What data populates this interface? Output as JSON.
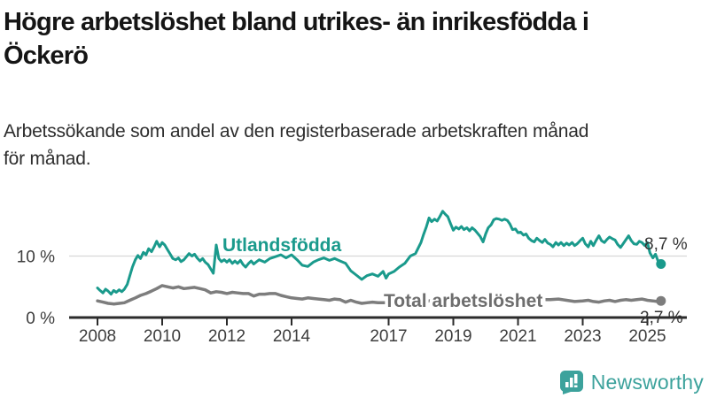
{
  "header": {
    "title": "Högre arbetslöshet bland utrikes- än inrikesfödda i\nÖckerö",
    "subtitle": "Arbetssökande som andel av den registerbaserade arbetskraften månad\nför månad."
  },
  "branding": {
    "logo_text": "Newsworthy",
    "logo_icon": "bar-chart-speech-bubble-icon",
    "logo_color": "#3ca29c"
  },
  "chart_data": {
    "type": "line",
    "title": "Högre arbetslöshet bland utrikes- än inrikesfödda i Öckerö",
    "subtitle": "Arbetssökande som andel av den registerbaserade arbetskraften månad för månad.",
    "x_axis": {
      "unit": "year",
      "range": [
        2008,
        2025.6
      ],
      "ticks": [
        2008,
        2010,
        2012,
        2014,
        2017,
        2019,
        2021,
        2023,
        2025
      ]
    },
    "y_axis": {
      "unit": "percent",
      "range": [
        0,
        18.5
      ],
      "ticks": [
        {
          "value": 10,
          "label": "10 %"
        },
        {
          "value": 0,
          "label": "0 %"
        }
      ],
      "gridline_at": 10
    },
    "colors": {
      "utlandsfodda": "#1a9a8c",
      "total": "#7d7d7d",
      "axis": "#2b2b2b",
      "gridline": "#d8d8d8",
      "end_label_text": "#333333"
    },
    "series": [
      {
        "name": "Total arbetslöshet",
        "color": "#7d7d7d",
        "label_color": "#6e6e6e",
        "end_label": "2,7 %",
        "end_value": 2.7,
        "points": [
          [
            2008.0,
            2.7
          ],
          [
            2008.17,
            2.5
          ],
          [
            2008.33,
            2.3
          ],
          [
            2008.5,
            2.2
          ],
          [
            2008.67,
            2.3
          ],
          [
            2008.83,
            2.4
          ],
          [
            2009.0,
            2.8
          ],
          [
            2009.17,
            3.2
          ],
          [
            2009.33,
            3.6
          ],
          [
            2009.5,
            3.9
          ],
          [
            2009.67,
            4.3
          ],
          [
            2009.83,
            4.7
          ],
          [
            2010.0,
            5.2
          ],
          [
            2010.17,
            5.0
          ],
          [
            2010.33,
            4.8
          ],
          [
            2010.5,
            5.0
          ],
          [
            2010.67,
            4.7
          ],
          [
            2010.83,
            4.8
          ],
          [
            2011.0,
            4.9
          ],
          [
            2011.17,
            4.7
          ],
          [
            2011.33,
            4.5
          ],
          [
            2011.5,
            4.0
          ],
          [
            2011.67,
            4.2
          ],
          [
            2011.83,
            4.1
          ],
          [
            2012.0,
            3.9
          ],
          [
            2012.17,
            4.1
          ],
          [
            2012.33,
            4.0
          ],
          [
            2012.5,
            3.9
          ],
          [
            2012.67,
            3.9
          ],
          [
            2012.83,
            3.5
          ],
          [
            2013.0,
            3.8
          ],
          [
            2013.17,
            3.8
          ],
          [
            2013.33,
            3.9
          ],
          [
            2013.5,
            3.9
          ],
          [
            2013.67,
            3.6
          ],
          [
            2013.83,
            3.4
          ],
          [
            2014.0,
            3.2
          ],
          [
            2014.17,
            3.1
          ],
          [
            2014.33,
            3.0
          ],
          [
            2014.5,
            3.2
          ],
          [
            2014.67,
            3.1
          ],
          [
            2014.83,
            3.0
          ],
          [
            2015.0,
            2.9
          ],
          [
            2015.17,
            2.8
          ],
          [
            2015.33,
            3.0
          ],
          [
            2015.5,
            2.9
          ],
          [
            2015.67,
            2.5
          ],
          [
            2015.83,
            2.8
          ],
          [
            2016.0,
            2.5
          ],
          [
            2016.17,
            2.3
          ],
          [
            2016.33,
            2.4
          ],
          [
            2016.5,
            2.5
          ],
          [
            2016.67,
            2.4
          ],
          [
            2016.83,
            2.4
          ],
          [
            2017.0,
            2.4
          ],
          [
            2017.25,
            2.3
          ],
          [
            2017.5,
            2.4
          ],
          [
            2017.75,
            2.5
          ],
          [
            2018.0,
            2.6
          ],
          [
            2018.25,
            2.7
          ],
          [
            2018.5,
            2.9
          ],
          [
            2018.75,
            2.9
          ],
          [
            2019.0,
            2.8
          ],
          [
            2019.25,
            2.8
          ],
          [
            2019.5,
            2.7
          ],
          [
            2019.75,
            2.8
          ],
          [
            2020.0,
            2.9
          ],
          [
            2020.25,
            3.4
          ],
          [
            2020.5,
            3.5
          ],
          [
            2020.75,
            3.4
          ],
          [
            2021.0,
            3.2
          ],
          [
            2021.25,
            3.1
          ],
          [
            2021.5,
            3.0
          ],
          [
            2021.75,
            2.9
          ],
          [
            2022.0,
            2.9
          ],
          [
            2022.25,
            3.0
          ],
          [
            2022.5,
            2.8
          ],
          [
            2022.75,
            2.6
          ],
          [
            2023.0,
            2.7
          ],
          [
            2023.17,
            2.8
          ],
          [
            2023.33,
            2.6
          ],
          [
            2023.5,
            2.5
          ],
          [
            2023.67,
            2.7
          ],
          [
            2023.83,
            2.8
          ],
          [
            2024.0,
            2.6
          ],
          [
            2024.17,
            2.8
          ],
          [
            2024.33,
            2.9
          ],
          [
            2024.5,
            2.8
          ],
          [
            2024.67,
            2.9
          ],
          [
            2024.83,
            3.0
          ],
          [
            2025.0,
            2.8
          ],
          [
            2025.17,
            2.7
          ],
          [
            2025.3,
            2.6
          ],
          [
            2025.42,
            2.7
          ]
        ]
      },
      {
        "name": "Utlandsfödda",
        "color": "#1a9a8c",
        "label_color": "#1a9a8c",
        "end_label": "8,7 %",
        "end_value": 8.7,
        "points": [
          [
            2008.0,
            4.8
          ],
          [
            2008.08,
            4.4
          ],
          [
            2008.17,
            4.0
          ],
          [
            2008.25,
            4.6
          ],
          [
            2008.33,
            4.3
          ],
          [
            2008.42,
            3.8
          ],
          [
            2008.5,
            4.4
          ],
          [
            2008.58,
            4.1
          ],
          [
            2008.67,
            4.5
          ],
          [
            2008.75,
            4.2
          ],
          [
            2008.83,
            4.6
          ],
          [
            2008.92,
            5.4
          ],
          [
            2009.0,
            6.8
          ],
          [
            2009.08,
            8.2
          ],
          [
            2009.17,
            9.4
          ],
          [
            2009.25,
            10.1
          ],
          [
            2009.33,
            9.6
          ],
          [
            2009.42,
            10.6
          ],
          [
            2009.5,
            10.2
          ],
          [
            2009.58,
            11.2
          ],
          [
            2009.67,
            10.7
          ],
          [
            2009.75,
            11.5
          ],
          [
            2009.83,
            12.4
          ],
          [
            2009.92,
            11.5
          ],
          [
            2010.0,
            12.2
          ],
          [
            2010.08,
            11.8
          ],
          [
            2010.17,
            11.0
          ],
          [
            2010.25,
            10.3
          ],
          [
            2010.33,
            9.6
          ],
          [
            2010.42,
            9.4
          ],
          [
            2010.5,
            9.7
          ],
          [
            2010.58,
            9.1
          ],
          [
            2010.67,
            9.4
          ],
          [
            2010.75,
            9.9
          ],
          [
            2010.83,
            10.4
          ],
          [
            2010.92,
            10.0
          ],
          [
            2011.0,
            10.3
          ],
          [
            2011.08,
            9.7
          ],
          [
            2011.17,
            9.2
          ],
          [
            2011.25,
            9.6
          ],
          [
            2011.33,
            9.0
          ],
          [
            2011.42,
            8.6
          ],
          [
            2011.5,
            7.9
          ],
          [
            2011.58,
            7.2
          ],
          [
            2011.67,
            11.8
          ],
          [
            2011.75,
            9.6
          ],
          [
            2011.83,
            9.1
          ],
          [
            2011.92,
            9.4
          ],
          [
            2012.0,
            9.0
          ],
          [
            2012.08,
            9.4
          ],
          [
            2012.17,
            8.8
          ],
          [
            2012.25,
            9.2
          ],
          [
            2012.33,
            8.8
          ],
          [
            2012.42,
            9.3
          ],
          [
            2012.5,
            8.6
          ],
          [
            2012.58,
            8.2
          ],
          [
            2012.67,
            8.8
          ],
          [
            2012.75,
            9.2
          ],
          [
            2012.83,
            8.7
          ],
          [
            2012.92,
            9.1
          ],
          [
            2013.0,
            9.4
          ],
          [
            2013.17,
            9.0
          ],
          [
            2013.33,
            9.6
          ],
          [
            2013.5,
            9.9
          ],
          [
            2013.67,
            10.2
          ],
          [
            2013.83,
            9.7
          ],
          [
            2014.0,
            10.2
          ],
          [
            2014.17,
            9.4
          ],
          [
            2014.33,
            8.5
          ],
          [
            2014.5,
            8.3
          ],
          [
            2014.67,
            9.0
          ],
          [
            2014.83,
            9.4
          ],
          [
            2015.0,
            9.7
          ],
          [
            2015.17,
            9.3
          ],
          [
            2015.33,
            9.6
          ],
          [
            2015.5,
            9.2
          ],
          [
            2015.67,
            8.8
          ],
          [
            2015.83,
            7.6
          ],
          [
            2016.0,
            6.9
          ],
          [
            2016.17,
            6.2
          ],
          [
            2016.33,
            6.8
          ],
          [
            2016.5,
            7.1
          ],
          [
            2016.67,
            6.7
          ],
          [
            2016.83,
            7.5
          ],
          [
            2016.92,
            6.4
          ],
          [
            2017.0,
            7.1
          ],
          [
            2017.17,
            7.5
          ],
          [
            2017.33,
            8.2
          ],
          [
            2017.5,
            8.8
          ],
          [
            2017.67,
            10.0
          ],
          [
            2017.83,
            10.4
          ],
          [
            2018.0,
            12.2
          ],
          [
            2018.08,
            13.5
          ],
          [
            2018.17,
            14.8
          ],
          [
            2018.25,
            16.2
          ],
          [
            2018.33,
            15.6
          ],
          [
            2018.42,
            16.0
          ],
          [
            2018.5,
            15.7
          ],
          [
            2018.58,
            16.4
          ],
          [
            2018.67,
            17.3
          ],
          [
            2018.75,
            16.8
          ],
          [
            2018.83,
            16.4
          ],
          [
            2018.92,
            15.2
          ],
          [
            2019.0,
            14.2
          ],
          [
            2019.08,
            14.7
          ],
          [
            2019.17,
            14.4
          ],
          [
            2019.25,
            14.8
          ],
          [
            2019.33,
            14.3
          ],
          [
            2019.42,
            14.6
          ],
          [
            2019.5,
            14.1
          ],
          [
            2019.58,
            14.6
          ],
          [
            2019.67,
            14.2
          ],
          [
            2019.75,
            13.7
          ],
          [
            2019.83,
            13.2
          ],
          [
            2019.92,
            12.3
          ],
          [
            2020.0,
            13.6
          ],
          [
            2020.08,
            14.6
          ],
          [
            2020.17,
            15.1
          ],
          [
            2020.25,
            15.9
          ],
          [
            2020.33,
            16.1
          ],
          [
            2020.42,
            16.0
          ],
          [
            2020.5,
            15.8
          ],
          [
            2020.58,
            16.0
          ],
          [
            2020.67,
            15.8
          ],
          [
            2020.75,
            15.2
          ],
          [
            2020.83,
            14.3
          ],
          [
            2020.92,
            14.4
          ],
          [
            2021.0,
            13.8
          ],
          [
            2021.08,
            13.9
          ],
          [
            2021.17,
            13.4
          ],
          [
            2021.25,
            13.6
          ],
          [
            2021.33,
            12.9
          ],
          [
            2021.42,
            12.5
          ],
          [
            2021.5,
            12.3
          ],
          [
            2021.58,
            12.9
          ],
          [
            2021.67,
            12.5
          ],
          [
            2021.75,
            12.2
          ],
          [
            2021.83,
            12.7
          ],
          [
            2021.92,
            12.1
          ],
          [
            2022.0,
            11.9
          ],
          [
            2022.08,
            11.5
          ],
          [
            2022.17,
            12.2
          ],
          [
            2022.25,
            11.8
          ],
          [
            2022.33,
            12.2
          ],
          [
            2022.42,
            11.7
          ],
          [
            2022.5,
            12.1
          ],
          [
            2022.58,
            11.8
          ],
          [
            2022.67,
            12.2
          ],
          [
            2022.75,
            11.7
          ],
          [
            2022.83,
            12.0
          ],
          [
            2022.92,
            12.5
          ],
          [
            2023.0,
            12.9
          ],
          [
            2023.08,
            12.0
          ],
          [
            2023.17,
            11.5
          ],
          [
            2023.25,
            12.4
          ],
          [
            2023.33,
            11.7
          ],
          [
            2023.42,
            12.6
          ],
          [
            2023.5,
            13.3
          ],
          [
            2023.58,
            12.5
          ],
          [
            2023.67,
            12.2
          ],
          [
            2023.75,
            12.7
          ],
          [
            2023.83,
            13.1
          ],
          [
            2023.92,
            12.8
          ],
          [
            2024.0,
            12.6
          ],
          [
            2024.08,
            11.9
          ],
          [
            2024.17,
            11.4
          ],
          [
            2024.25,
            12.0
          ],
          [
            2024.33,
            12.6
          ],
          [
            2024.42,
            13.3
          ],
          [
            2024.5,
            12.5
          ],
          [
            2024.58,
            12.0
          ],
          [
            2024.67,
            11.9
          ],
          [
            2024.75,
            12.4
          ],
          [
            2024.83,
            12.2
          ],
          [
            2024.92,
            11.7
          ],
          [
            2025.0,
            12.2
          ],
          [
            2025.08,
            10.5
          ],
          [
            2025.17,
            9.7
          ],
          [
            2025.25,
            10.3
          ],
          [
            2025.33,
            9.2
          ],
          [
            2025.42,
            8.7
          ]
        ]
      }
    ],
    "legend": "inline series labels",
    "grid": "horizontal gridline at 10 % only"
  }
}
